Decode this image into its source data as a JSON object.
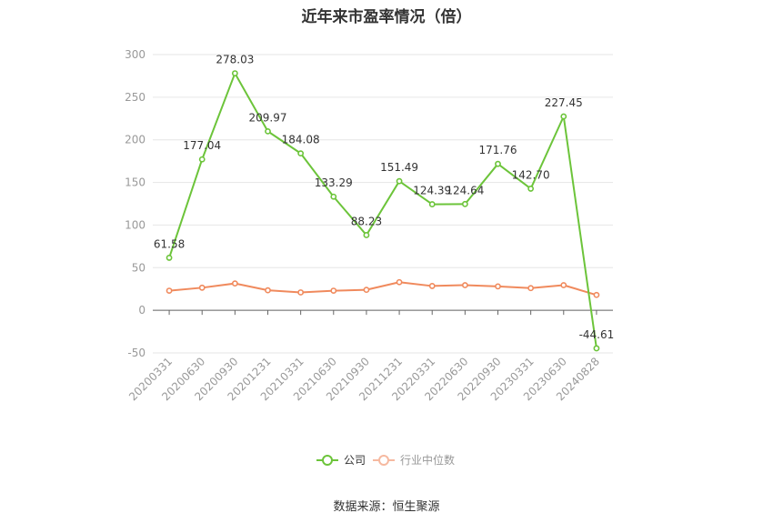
{
  "title": "近年来市盈率情况（倍）",
  "source": "数据来源：恒生聚源",
  "chart_data": {
    "type": "line",
    "title": "近年来市盈率情况（倍）",
    "categories": [
      "20200331",
      "20200630",
      "20200930",
      "20201231",
      "20210331",
      "20210630",
      "20210930",
      "20211231",
      "20220331",
      "20220630",
      "20220930",
      "20230331",
      "20230630",
      "20240828"
    ],
    "ylim": [
      -50,
      300
    ],
    "yticks": [
      300,
      250,
      200,
      150,
      100,
      50,
      0,
      -50
    ],
    "grid": true,
    "legend_position": "bottom",
    "series": [
      {
        "name": "公司",
        "color": "#6cc43a",
        "show_labels": true,
        "values": [
          61.58,
          177.04,
          278.03,
          209.97,
          184.08,
          133.29,
          88.23,
          151.49,
          124.39,
          124.64,
          171.76,
          142.7,
          227.45,
          -44.61
        ],
        "labels": [
          "61.58",
          "177.04",
          "278.03",
          "209.97",
          "184.08",
          "133.29",
          "88.23",
          "151.49",
          "124.39",
          "124.64",
          "171.76",
          "142.70",
          "227.45",
          "-44.61"
        ]
      },
      {
        "name": "行业中位数",
        "color": "#f08a5d",
        "show_labels": false,
        "values": [
          23.0,
          26.5,
          31.5,
          23.5,
          21.0,
          23.0,
          24.0,
          33.0,
          28.5,
          29.5,
          28.0,
          26.0,
          29.5,
          18.0
        ]
      }
    ]
  }
}
